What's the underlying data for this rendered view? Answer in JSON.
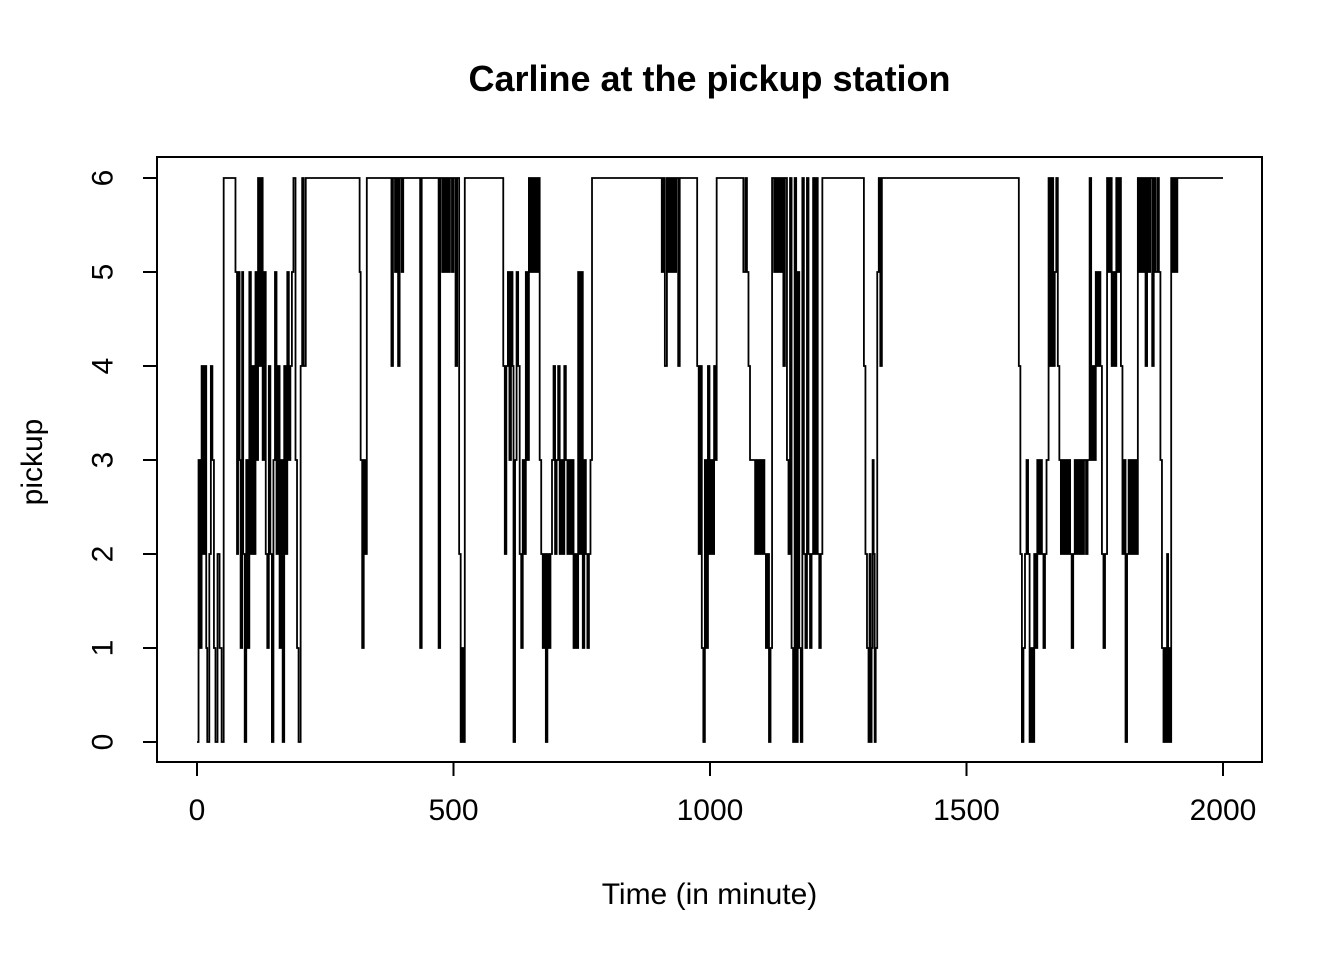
{
  "figure": {
    "background": "#ffffff",
    "foreground": "#000000"
  },
  "chart_data": {
    "type": "line",
    "subtype": "step",
    "title": "Carline at the pickup station",
    "xlabel": "Time (in minute)",
    "ylabel": "pickup",
    "xlim": [
      0,
      2000
    ],
    "ylim": [
      0,
      6
    ],
    "x_ticks": [
      0,
      500,
      1000,
      1500,
      2000
    ],
    "y_ticks": [
      0,
      1,
      2,
      3,
      4,
      5,
      6
    ],
    "grid": false,
    "legend": null,
    "line_color": "#000000",
    "points": [
      [
        0,
        0
      ],
      [
        3,
        3
      ],
      [
        6,
        1
      ],
      [
        9,
        4
      ],
      [
        12,
        2
      ],
      [
        15,
        4
      ],
      [
        18,
        1
      ],
      [
        20,
        0
      ],
      [
        24,
        2
      ],
      [
        27,
        4
      ],
      [
        30,
        3
      ],
      [
        33,
        1
      ],
      [
        36,
        0
      ],
      [
        40,
        2
      ],
      [
        44,
        1
      ],
      [
        48,
        0
      ],
      [
        52,
        6
      ],
      [
        75,
        5
      ],
      [
        78,
        2
      ],
      [
        80,
        5
      ],
      [
        83,
        3
      ],
      [
        85,
        1
      ],
      [
        88,
        5
      ],
      [
        90,
        2
      ],
      [
        93,
        0
      ],
      [
        96,
        3
      ],
      [
        99,
        1
      ],
      [
        102,
        5
      ],
      [
        105,
        2
      ],
      [
        108,
        4
      ],
      [
        111,
        2
      ],
      [
        114,
        5
      ],
      [
        117,
        3
      ],
      [
        119,
        6
      ],
      [
        122,
        4
      ],
      [
        125,
        6
      ],
      [
        128,
        3
      ],
      [
        131,
        5
      ],
      [
        134,
        2
      ],
      [
        137,
        1
      ],
      [
        140,
        4
      ],
      [
        143,
        2
      ],
      [
        146,
        0
      ],
      [
        149,
        3
      ],
      [
        152,
        5
      ],
      [
        155,
        2
      ],
      [
        158,
        4
      ],
      [
        161,
        1
      ],
      [
        164,
        3
      ],
      [
        167,
        0
      ],
      [
        170,
        4
      ],
      [
        173,
        2
      ],
      [
        176,
        5
      ],
      [
        179,
        3
      ],
      [
        182,
        4
      ],
      [
        185,
        5
      ],
      [
        188,
        6
      ],
      [
        192,
        3
      ],
      [
        195,
        1
      ],
      [
        198,
        0
      ],
      [
        202,
        4
      ],
      [
        205,
        6
      ],
      [
        208,
        4
      ],
      [
        212,
        6
      ],
      [
        317,
        5
      ],
      [
        319,
        3
      ],
      [
        322,
        1
      ],
      [
        325,
        3
      ],
      [
        328,
        2
      ],
      [
        331,
        6
      ],
      [
        379,
        4
      ],
      [
        382,
        6
      ],
      [
        386,
        5
      ],
      [
        389,
        6
      ],
      [
        392,
        4
      ],
      [
        395,
        6
      ],
      [
        399,
        5
      ],
      [
        402,
        6
      ],
      [
        435,
        1
      ],
      [
        438,
        6
      ],
      [
        471,
        1
      ],
      [
        474,
        6
      ],
      [
        478,
        5
      ],
      [
        481,
        6
      ],
      [
        484,
        5
      ],
      [
        487,
        6
      ],
      [
        490,
        5
      ],
      [
        493,
        6
      ],
      [
        497,
        5
      ],
      [
        500,
        6
      ],
      [
        504,
        4
      ],
      [
        507,
        6
      ],
      [
        511,
        2
      ],
      [
        514,
        0
      ],
      [
        517,
        1
      ],
      [
        519,
        0
      ],
      [
        522,
        6
      ],
      [
        597,
        4
      ],
      [
        600,
        2
      ],
      [
        603,
        4
      ],
      [
        606,
        5
      ],
      [
        609,
        3
      ],
      [
        612,
        5
      ],
      [
        615,
        4
      ],
      [
        617,
        0
      ],
      [
        620,
        3
      ],
      [
        623,
        5
      ],
      [
        626,
        4
      ],
      [
        629,
        2
      ],
      [
        632,
        1
      ],
      [
        635,
        3
      ],
      [
        638,
        2
      ],
      [
        641,
        5
      ],
      [
        644,
        3
      ],
      [
        647,
        6
      ],
      [
        650,
        5
      ],
      [
        653,
        6
      ],
      [
        656,
        5
      ],
      [
        659,
        6
      ],
      [
        662,
        5
      ],
      [
        665,
        6
      ],
      [
        668,
        3
      ],
      [
        671,
        2
      ],
      [
        674,
        1
      ],
      [
        677,
        2
      ],
      [
        680,
        0
      ],
      [
        683,
        2
      ],
      [
        686,
        1
      ],
      [
        689,
        2
      ],
      [
        692,
        3
      ],
      [
        695,
        4
      ],
      [
        698,
        2
      ],
      [
        701,
        3
      ],
      [
        704,
        4
      ],
      [
        707,
        2
      ],
      [
        710,
        3
      ],
      [
        713,
        2
      ],
      [
        716,
        4
      ],
      [
        719,
        3
      ],
      [
        722,
        2
      ],
      [
        725,
        3
      ],
      [
        728,
        2
      ],
      [
        731,
        3
      ],
      [
        734,
        1
      ],
      [
        737,
        2
      ],
      [
        740,
        1
      ],
      [
        743,
        5
      ],
      [
        746,
        2
      ],
      [
        749,
        5
      ],
      [
        752,
        1
      ],
      [
        755,
        3
      ],
      [
        758,
        2
      ],
      [
        761,
        1
      ],
      [
        764,
        2
      ],
      [
        767,
        3
      ],
      [
        770,
        6
      ],
      [
        906,
        5
      ],
      [
        909,
        6
      ],
      [
        912,
        4
      ],
      [
        916,
        6
      ],
      [
        919,
        5
      ],
      [
        922,
        6
      ],
      [
        925,
        5
      ],
      [
        928,
        6
      ],
      [
        931,
        5
      ],
      [
        934,
        6
      ],
      [
        938,
        4
      ],
      [
        941,
        6
      ],
      [
        975,
        4
      ],
      [
        978,
        2
      ],
      [
        981,
        4
      ],
      [
        984,
        1
      ],
      [
        987,
        0
      ],
      [
        990,
        3
      ],
      [
        993,
        1
      ],
      [
        996,
        4
      ],
      [
        999,
        2
      ],
      [
        1002,
        3
      ],
      [
        1005,
        2
      ],
      [
        1008,
        4
      ],
      [
        1010,
        3
      ],
      [
        1013,
        6
      ],
      [
        1065,
        5
      ],
      [
        1069,
        6
      ],
      [
        1072,
        5
      ],
      [
        1075,
        4
      ],
      [
        1078,
        3
      ],
      [
        1088,
        2
      ],
      [
        1091,
        3
      ],
      [
        1094,
        2
      ],
      [
        1097,
        3
      ],
      [
        1100,
        2
      ],
      [
        1103,
        3
      ],
      [
        1106,
        2
      ],
      [
        1109,
        1
      ],
      [
        1112,
        2
      ],
      [
        1115,
        0
      ],
      [
        1118,
        1
      ],
      [
        1121,
        6
      ],
      [
        1125,
        5
      ],
      [
        1128,
        6
      ],
      [
        1131,
        5
      ],
      [
        1134,
        6
      ],
      [
        1137,
        5
      ],
      [
        1140,
        6
      ],
      [
        1143,
        4
      ],
      [
        1146,
        6
      ],
      [
        1150,
        3
      ],
      [
        1153,
        2
      ],
      [
        1156,
        6
      ],
      [
        1159,
        1
      ],
      [
        1162,
        0
      ],
      [
        1165,
        6
      ],
      [
        1168,
        0
      ],
      [
        1171,
        5
      ],
      [
        1174,
        1
      ],
      [
        1177,
        0
      ],
      [
        1180,
        6
      ],
      [
        1183,
        2
      ],
      [
        1186,
        1
      ],
      [
        1189,
        6
      ],
      [
        1192,
        2
      ],
      [
        1195,
        1
      ],
      [
        1198,
        2
      ],
      [
        1201,
        6
      ],
      [
        1204,
        2
      ],
      [
        1207,
        6
      ],
      [
        1210,
        2
      ],
      [
        1213,
        1
      ],
      [
        1216,
        2
      ],
      [
        1219,
        6
      ],
      [
        1300,
        4
      ],
      [
        1303,
        2
      ],
      [
        1306,
        1
      ],
      [
        1309,
        0
      ],
      [
        1311,
        2
      ],
      [
        1313,
        0
      ],
      [
        1315,
        1
      ],
      [
        1317,
        3
      ],
      [
        1319,
        2
      ],
      [
        1321,
        0
      ],
      [
        1323,
        1
      ],
      [
        1326,
        5
      ],
      [
        1329,
        6
      ],
      [
        1332,
        4
      ],
      [
        1335,
        6
      ],
      [
        1602,
        4
      ],
      [
        1605,
        2
      ],
      [
        1608,
        0
      ],
      [
        1611,
        1
      ],
      [
        1614,
        2
      ],
      [
        1617,
        3
      ],
      [
        1620,
        2
      ],
      [
        1623,
        0
      ],
      [
        1626,
        1
      ],
      [
        1629,
        0
      ],
      [
        1632,
        2
      ],
      [
        1635,
        1
      ],
      [
        1638,
        3
      ],
      [
        1641,
        2
      ],
      [
        1644,
        3
      ],
      [
        1647,
        2
      ],
      [
        1650,
        1
      ],
      [
        1653,
        2
      ],
      [
        1656,
        3
      ],
      [
        1660,
        6
      ],
      [
        1663,
        4
      ],
      [
        1666,
        6
      ],
      [
        1669,
        4
      ],
      [
        1672,
        5
      ],
      [
        1675,
        6
      ],
      [
        1678,
        4
      ],
      [
        1681,
        3
      ],
      [
        1684,
        2
      ],
      [
        1687,
        3
      ],
      [
        1690,
        2
      ],
      [
        1693,
        3
      ],
      [
        1696,
        2
      ],
      [
        1699,
        3
      ],
      [
        1702,
        2
      ],
      [
        1705,
        1
      ],
      [
        1708,
        2
      ],
      [
        1711,
        3
      ],
      [
        1714,
        2
      ],
      [
        1717,
        3
      ],
      [
        1720,
        2
      ],
      [
        1723,
        3
      ],
      [
        1726,
        2
      ],
      [
        1729,
        3
      ],
      [
        1733,
        2
      ],
      [
        1736,
        3
      ],
      [
        1740,
        6
      ],
      [
        1743,
        3
      ],
      [
        1746,
        4
      ],
      [
        1749,
        3
      ],
      [
        1752,
        5
      ],
      [
        1755,
        4
      ],
      [
        1758,
        5
      ],
      [
        1761,
        4
      ],
      [
        1764,
        2
      ],
      [
        1767,
        1
      ],
      [
        1770,
        2
      ],
      [
        1774,
        6
      ],
      [
        1777,
        5
      ],
      [
        1780,
        6
      ],
      [
        1783,
        4
      ],
      [
        1786,
        5
      ],
      [
        1789,
        4
      ],
      [
        1792,
        6
      ],
      [
        1795,
        5
      ],
      [
        1798,
        6
      ],
      [
        1801,
        4
      ],
      [
        1804,
        2
      ],
      [
        1807,
        3
      ],
      [
        1810,
        0
      ],
      [
        1813,
        2
      ],
      [
        1816,
        3
      ],
      [
        1819,
        2
      ],
      [
        1822,
        3
      ],
      [
        1825,
        2
      ],
      [
        1828,
        3
      ],
      [
        1831,
        2
      ],
      [
        1834,
        6
      ],
      [
        1837,
        5
      ],
      [
        1840,
        6
      ],
      [
        1843,
        5
      ],
      [
        1846,
        6
      ],
      [
        1849,
        4
      ],
      [
        1852,
        6
      ],
      [
        1855,
        5
      ],
      [
        1858,
        6
      ],
      [
        1862,
        4
      ],
      [
        1865,
        6
      ],
      [
        1868,
        5
      ],
      [
        1872,
        6
      ],
      [
        1875,
        5
      ],
      [
        1878,
        3
      ],
      [
        1881,
        1
      ],
      [
        1884,
        0
      ],
      [
        1887,
        1
      ],
      [
        1889,
        0
      ],
      [
        1891,
        2
      ],
      [
        1893,
        0
      ],
      [
        1895,
        1
      ],
      [
        1897,
        0
      ],
      [
        1899,
        6
      ],
      [
        1902,
        5
      ],
      [
        1905,
        6
      ],
      [
        1908,
        5
      ],
      [
        1911,
        6
      ],
      [
        2000,
        6
      ]
    ]
  }
}
